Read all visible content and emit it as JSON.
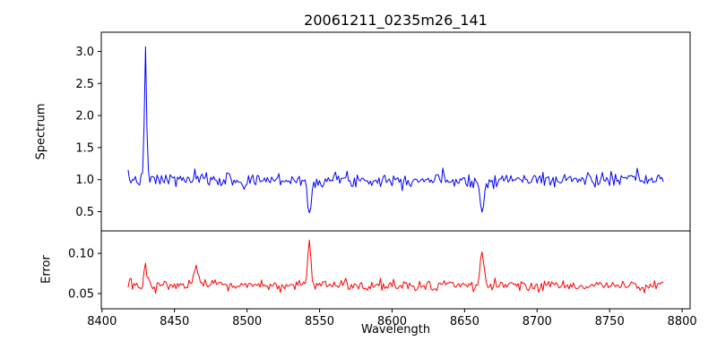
{
  "chart_data": {
    "type": "line",
    "title": "20061211_0235m26_141",
    "xlabel": "Wavelength",
    "xlim": [
      8399.5,
      8805.5
    ],
    "x_start": 8418,
    "x_end": 8787,
    "x_step": 1,
    "xticks": [
      8400,
      8450,
      8500,
      8550,
      8600,
      8650,
      8700,
      8750,
      8800
    ],
    "xtick_labels": [
      "8400",
      "8450",
      "8500",
      "8550",
      "8600",
      "8650",
      "8700",
      "8750",
      "8800"
    ],
    "grid": false,
    "legend": "none",
    "subplots": [
      {
        "name": "spectrum",
        "ylabel": "Spectrum",
        "ylim": [
          0.2,
          3.3
        ],
        "yticks": [
          0.5,
          1.0,
          1.5,
          2.0,
          2.5,
          3.0
        ],
        "ytick_labels": [
          "0.5",
          "1.0",
          "1.5",
          "2.0",
          "2.5",
          "3.0"
        ],
        "color": "#0000ff",
        "baseline": 1.0,
        "noise_std": 0.055,
        "seed": 7,
        "features": [
          {
            "center": 8430,
            "amplitude": 2.1,
            "sigma": 0.7,
            "note": "narrow emission spike, peak ~3.1"
          },
          {
            "center": 8498,
            "amplitude": -0.15,
            "sigma": 1.2,
            "note": "weak absorption dip"
          },
          {
            "center": 8543,
            "amplitude": -0.62,
            "sigma": 1.2,
            "note": "absorption line, minimum ~0.38"
          },
          {
            "center": 8662,
            "amplitude": -0.5,
            "sigma": 1.5,
            "note": "absorption line, minimum ~0.50"
          }
        ]
      },
      {
        "name": "error",
        "ylabel": "Error",
        "ylim": [
          0.031,
          0.128
        ],
        "yticks": [
          0.05,
          0.1
        ],
        "ytick_labels": [
          "0.05",
          "0.10"
        ],
        "color": "#ff0000",
        "baseline": 0.06,
        "noise_std": 0.0035,
        "seed": 13,
        "features": [
          {
            "center": 8430,
            "amplitude": 0.03,
            "sigma": 0.8,
            "note": "error spike ~0.09"
          },
          {
            "center": 8465,
            "amplitude": 0.022,
            "sigma": 1.5,
            "note": "error bump ~0.085"
          },
          {
            "center": 8543,
            "amplitude": 0.058,
            "sigma": 1.0,
            "note": "error spike ~0.12"
          },
          {
            "center": 8662,
            "amplitude": 0.04,
            "sigma": 1.2,
            "note": "error spike ~0.10"
          }
        ]
      }
    ]
  }
}
